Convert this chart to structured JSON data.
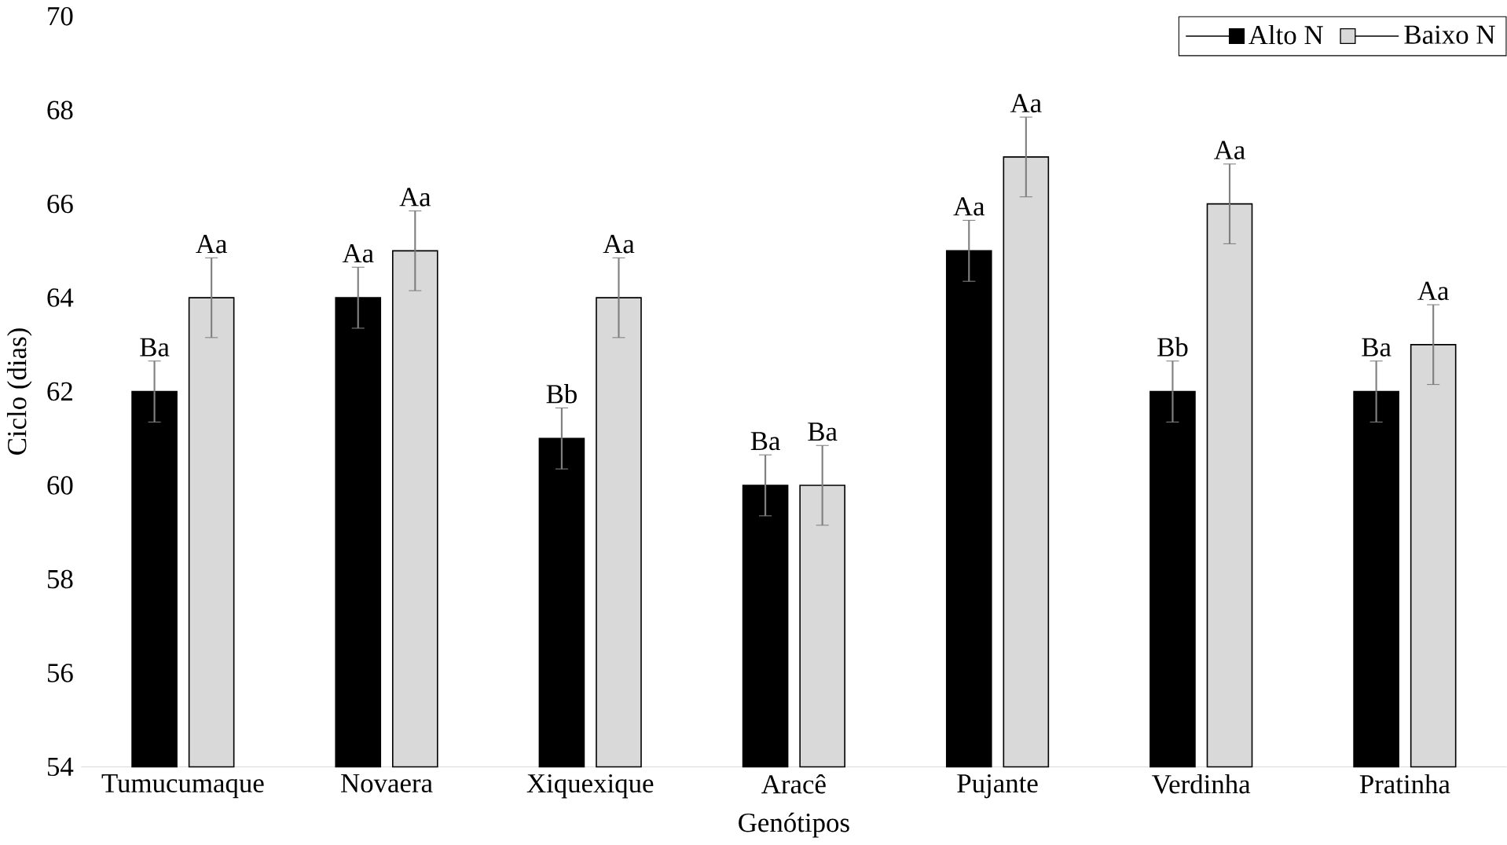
{
  "chart_data": {
    "type": "bar",
    "xlabel": "Genótipos",
    "ylabel": "Ciclo (dias)",
    "categories": [
      "Tumucumaque",
      "Novaera",
      "Xiquexique",
      "Aracê",
      "Pujante",
      "Verdinha",
      "Pratinha"
    ],
    "series": [
      {
        "name": "Alto N",
        "color": "#000000",
        "values": [
          62,
          64,
          61,
          60,
          65,
          62,
          62
        ],
        "errors": [
          0.65,
          0.65,
          0.65,
          0.65,
          0.65,
          0.65,
          0.65
        ],
        "value_labels": [
          "Ba",
          "Aa",
          "Bb",
          "Ba",
          "Aa",
          "Bb",
          "Ba"
        ]
      },
      {
        "name": "Baixo N",
        "color": "#d9d9d9",
        "values": [
          64,
          65,
          64,
          60,
          67,
          66,
          63
        ],
        "errors": [
          0.85,
          0.85,
          0.85,
          0.85,
          0.85,
          0.85,
          0.85
        ],
        "value_labels": [
          "Aa",
          "Aa",
          "Aa",
          "Ba",
          "Aa",
          "Aa",
          "Aa"
        ]
      }
    ],
    "ylim": [
      54,
      70
    ],
    "yticks": [
      54,
      56,
      58,
      60,
      62,
      64,
      66,
      68,
      70
    ],
    "grid": false,
    "legend": "top right"
  }
}
